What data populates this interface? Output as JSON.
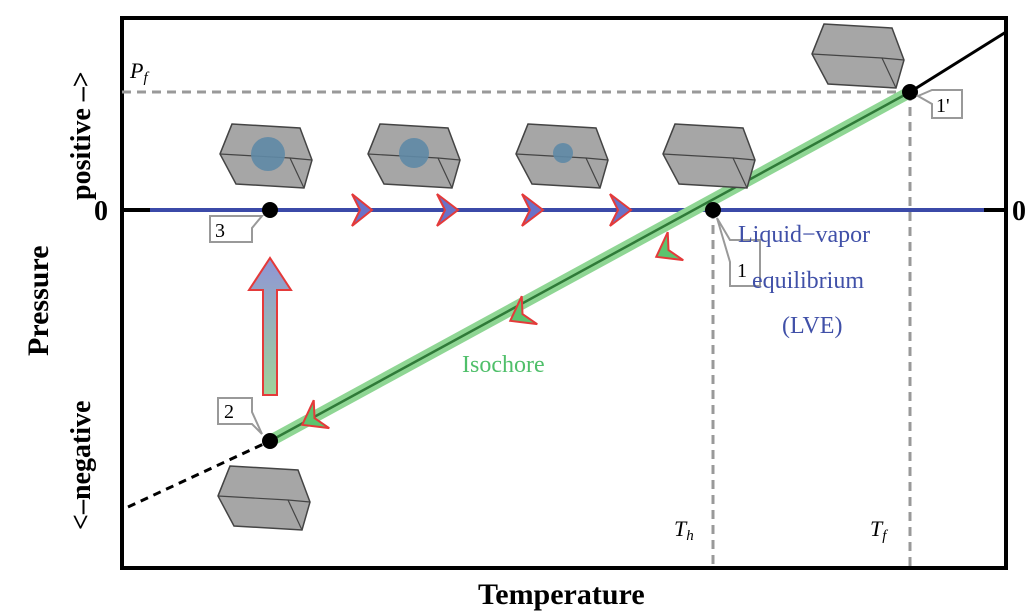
{
  "axes": {
    "x_title": "Temperature",
    "y_title": "Pressure",
    "y_positive": "positive –>",
    "y_negative": "<–negative",
    "zero_left": "0",
    "zero_right": "0"
  },
  "markers": {
    "pf_main": "P",
    "pf_sub": "f",
    "th_main": "T",
    "th_sub": "h",
    "tf_main": "T",
    "tf_sub": "f"
  },
  "labels": {
    "lve_line1": "Liquid−vapor",
    "lve_line2": "equilibrium",
    "lve_line3": "(LVE)",
    "isochore": "Isochore"
  },
  "points": {
    "p1": "1",
    "p1prime": "1'",
    "p2": "2",
    "p3": "3"
  },
  "colors": {
    "lve_line": "#3b4aa8",
    "isochore": "#5cc46e",
    "arrow_outline": "#e43a3a",
    "dashed": "#999999",
    "crystal": "#a6a6a6",
    "bubble": "#5f8aa6"
  },
  "icons": [
    "crystal-box-icon",
    "bubble-icon",
    "arrow-head-icon"
  ]
}
